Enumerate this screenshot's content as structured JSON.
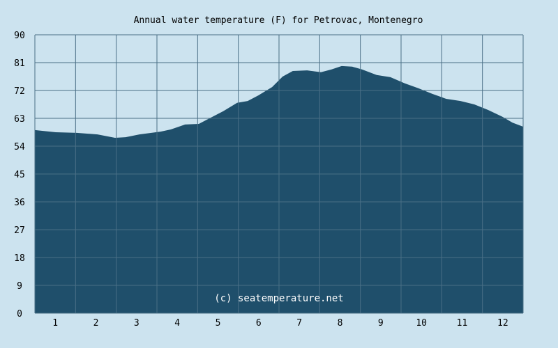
{
  "chart_data": {
    "type": "area",
    "title": "Annual water temperature (F) for Petrovac, Montenegro",
    "xlabel": "",
    "ylabel": "",
    "xlim": [
      0.5,
      12.5
    ],
    "ylim": [
      0,
      90
    ],
    "grid": true,
    "x_ticks": [
      "1",
      "2",
      "3",
      "4",
      "5",
      "6",
      "7",
      "8",
      "9",
      "10",
      "11",
      "12"
    ],
    "y_ticks": [
      "0",
      "9",
      "18",
      "27",
      "36",
      "45",
      "54",
      "63",
      "72",
      "81",
      "90"
    ],
    "annotation": "(c) seatemperature.net",
    "series": [
      {
        "name": "Water temperature (F)",
        "color": "#1f4f6b",
        "x": [
          0.5,
          1.01,
          1.53,
          2.04,
          2.47,
          2.73,
          3.07,
          3.59,
          3.84,
          4.19,
          4.53,
          4.79,
          5.13,
          5.47,
          5.73,
          5.99,
          6.33,
          6.59,
          6.84,
          7.19,
          7.53,
          7.79,
          8.04,
          8.3,
          8.54,
          8.9,
          9.24,
          9.59,
          9.93,
          10.27,
          10.61,
          10.96,
          11.3,
          11.64,
          11.99,
          12.24,
          12.5
        ],
        "values": [
          59.2,
          58.5,
          58.3,
          57.8,
          56.7,
          56.9,
          57.8,
          58.7,
          59.4,
          61.0,
          61.2,
          63.0,
          65.3,
          68.0,
          68.6,
          70.4,
          73.1,
          76.5,
          78.3,
          78.5,
          77.9,
          78.8,
          79.9,
          79.7,
          78.8,
          77.0,
          76.3,
          74.3,
          72.7,
          70.9,
          69.3,
          68.6,
          67.5,
          65.7,
          63.5,
          61.6,
          60.3
        ]
      }
    ]
  },
  "colors": {
    "background": "#cce3ef",
    "fill": "#1f4f6b",
    "grid": "#4a6f86"
  }
}
